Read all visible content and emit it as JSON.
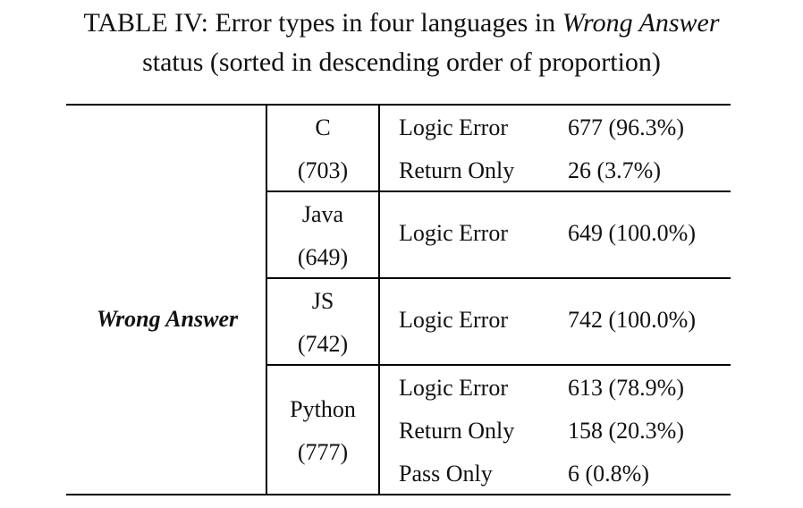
{
  "caption": {
    "prefix": "TABLE IV: Error types in four languages in ",
    "emph": "Wrong Answer",
    "line2": "status (sorted in descending order of proportion)"
  },
  "status": "Wrong Answer",
  "groups": [
    {
      "lang": "C",
      "count": "(703)",
      "rows": [
        {
          "type": "Logic Error",
          "value": "677 (96.3%)"
        },
        {
          "type": "Return Only",
          "value": "26 (3.7%)"
        }
      ]
    },
    {
      "lang": "Java",
      "count": "(649)",
      "rows": [
        {
          "type": "Logic Error",
          "value": "649 (100.0%)"
        }
      ]
    },
    {
      "lang": "JS",
      "count": "(742)",
      "rows": [
        {
          "type": "Logic Error",
          "value": "742 (100.0%)"
        }
      ]
    },
    {
      "lang": "Python",
      "count": "(777)",
      "rows": [
        {
          "type": "Logic Error",
          "value": "613 (78.9%)"
        },
        {
          "type": "Return Only",
          "value": "158 (20.3%)"
        },
        {
          "type": "Pass Only",
          "value": "6 (0.8%)"
        }
      ]
    }
  ]
}
